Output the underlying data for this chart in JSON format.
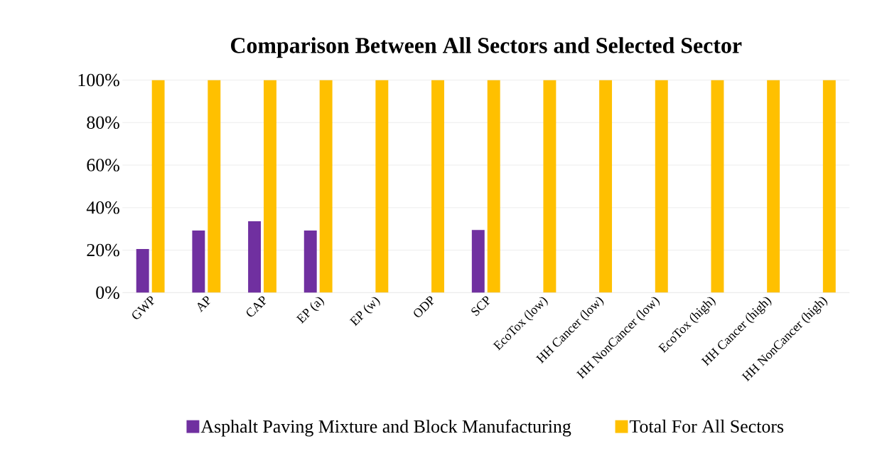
{
  "chart_data": {
    "type": "bar",
    "title": "Comparison Between All Sectors and Selected Sector",
    "categories": [
      "GWP",
      "AP",
      "CAP",
      "EP (a)",
      "EP (w)",
      "ODP",
      "SCP",
      "EcoTox (low)",
      "HH Cancer (low)",
      "HH NonCancer (low)",
      "EcoTox (high)",
      "HH Cancer (high)",
      "HH NonCancer (high)"
    ],
    "series": [
      {
        "name": "Asphalt Paving Mixture and Block Manufacturing",
        "color": "#7030a0",
        "values": [
          20.5,
          29.2,
          33.6,
          29.2,
          0,
          0,
          29.5,
          0,
          0,
          0,
          0,
          0,
          0
        ]
      },
      {
        "name": "Total For All Sectors",
        "color": "#ffc000",
        "values": [
          100,
          100,
          100,
          100,
          100,
          100,
          100,
          100,
          100,
          100,
          100,
          100,
          100
        ]
      }
    ],
    "ylim": [
      0,
      100
    ],
    "yticks": [
      {
        "value": 0,
        "label": "0%"
      },
      {
        "value": 20,
        "label": "20%"
      },
      {
        "value": 40,
        "label": "40%"
      },
      {
        "value": 60,
        "label": "60%"
      },
      {
        "value": 80,
        "label": "80%"
      },
      {
        "value": 100,
        "label": "100%"
      }
    ],
    "grid": "y",
    "legend": "bottom"
  }
}
